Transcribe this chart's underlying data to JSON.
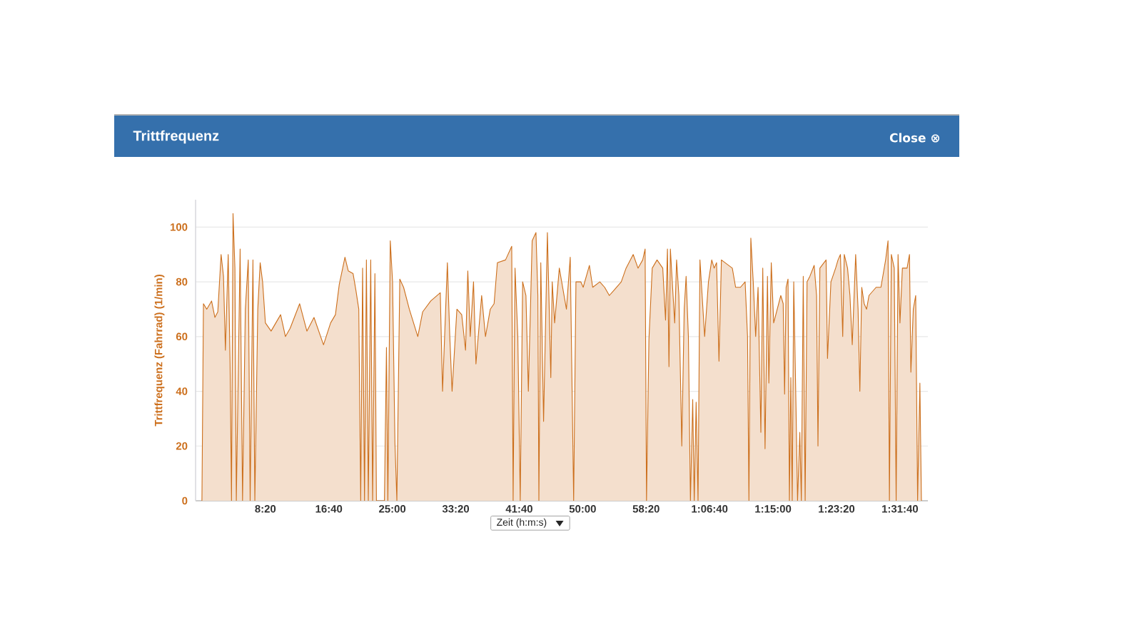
{
  "chart_data": {
    "type": "area",
    "title": "Trittfrequenz",
    "xlabel": "Zeit (h:m:s)",
    "ylabel": "Trittfrequenz (Fahrrad) (1/min)",
    "annotations": [
      "Close ⊗"
    ],
    "color": "#cc6f1c",
    "x": [
      0,
      12,
      38,
      76,
      102,
      125,
      151,
      170,
      185,
      207,
      222,
      233,
      245,
      260,
      271,
      301,
      320,
      342,
      365,
      380,
      402,
      417,
      440,
      459,
      478,
      500,
      545,
      620,
      658,
      695,
      770,
      827,
      883,
      958,
      1014,
      1052,
      1082,
      1127,
      1153,
      1191,
      1213,
      1236,
      1251,
      1266,
      1281,
      1296,
      1311,
      1330,
      1345,
      1363,
      1375,
      1438,
      1454,
      1465,
      1484,
      1502,
      1521,
      1536,
      1559,
      1589,
      1634,
      1701,
      1739,
      1803,
      1878,
      1896,
      1934,
      1953,
      1971,
      2009,
      2047,
      2077,
      2095,
      2114,
      2140,
      2159,
      2204,
      2234,
      2272,
      2302,
      2328,
      2392,
      2441,
      2452,
      2467,
      2489,
      2508,
      2527,
      2553,
      2572,
      2602,
      2632,
      2647,
      2655,
      2670,
      2692,
      2722,
      2734,
      2749,
      2760,
      2779,
      2816,
      2872,
      2902,
      2929,
      2947,
      2985,
      3004,
      3053,
      3079,
      3135,
      3173,
      3210,
      3248,
      3304,
      3342,
      3398,
      3436,
      3473,
      3492,
      3503,
      3522,
      3548,
      3586,
      3631,
      3653,
      3668,
      3680,
      3691,
      3706,
      3725,
      3740,
      3758,
      3781,
      3800,
      3815,
      3833,
      3849,
      3867,
      3879,
      3894,
      3909,
      3924,
      3961,
      3991,
      4017,
      4036,
      4055,
      4074,
      4093,
      4179,
      4205,
      4243,
      4280,
      4299,
      4310,
      4325,
      4344,
      4363,
      4382,
      4404,
      4419,
      4437,
      4456,
      4467,
      4486,
      4505,
      4561,
      4580,
      4591,
      4603,
      4618,
      4629,
      4640,
      4651,
      4663,
      4681,
      4693,
      4711,
      4723,
      4738,
      4753,
      4768,
      4790,
      4824,
      4843,
      4854,
      4869,
      4918,
      4929,
      4956,
      4993,
      5012,
      5031,
      5049,
      5061,
      5087,
      5106,
      5124,
      5151,
      5170,
      5184,
      5199,
      5218,
      5237,
      5256,
      5312,
      5350,
      5387,
      5406,
      5417,
      5432,
      5455,
      5470,
      5485,
      5500,
      5519,
      5556,
      5575,
      5586,
      5605,
      5624,
      5639,
      5657,
      5669
    ],
    "values": [
      0,
      72,
      70,
      73,
      67,
      69,
      90,
      82,
      55,
      90,
      50,
      0,
      105,
      85,
      0,
      92,
      0,
      70,
      88,
      0,
      88,
      0,
      70,
      87,
      80,
      65,
      62,
      68,
      60,
      63,
      72,
      62,
      67,
      57,
      65,
      68,
      79,
      89,
      84,
      83,
      77,
      70,
      0,
      85,
      0,
      88,
      0,
      88,
      0,
      83,
      0,
      0,
      56,
      0,
      95,
      80,
      21,
      0,
      81,
      78,
      70,
      60,
      69,
      73,
      76,
      40,
      87,
      60,
      40,
      70,
      68,
      55,
      84,
      60,
      80,
      50,
      75,
      60,
      70,
      72,
      87,
      88,
      93,
      0,
      85,
      60,
      0,
      80,
      75,
      40,
      95,
      98,
      75,
      0,
      87,
      29,
      98,
      75,
      45,
      80,
      65,
      85,
      70,
      89,
      0,
      80,
      80,
      78,
      86,
      78,
      80,
      78,
      75,
      77,
      80,
      85,
      90,
      85,
      88,
      92,
      0,
      59,
      85,
      88,
      85,
      66,
      92,
      49,
      92,
      80,
      65,
      88,
      75,
      20,
      70,
      82,
      60,
      0,
      37,
      0,
      36,
      0,
      88,
      60,
      80,
      88,
      85,
      87,
      51,
      88,
      85,
      78,
      78,
      80,
      60,
      0,
      96,
      80,
      60,
      78,
      25,
      85,
      19,
      82,
      43,
      87,
      65,
      75,
      72,
      39,
      78,
      81,
      0,
      45,
      0,
      80,
      34,
      0,
      25,
      0,
      82,
      0,
      80,
      82,
      86,
      75,
      20,
      85,
      88,
      52,
      80,
      85,
      88,
      90,
      60,
      90,
      85,
      75,
      57,
      90,
      70,
      40,
      78,
      72,
      70,
      75,
      78,
      78,
      88,
      95,
      0,
      90,
      85,
      0,
      90,
      65,
      85,
      85,
      90,
      47,
      70,
      75,
      0,
      43,
      0
    ],
    "xlim": [
      -50,
      5720
    ],
    "ylim": [
      0,
      110
    ],
    "xticks": [
      {
        "value": 500,
        "label": "8:20"
      },
      {
        "value": 1000,
        "label": "16:40"
      },
      {
        "value": 1500,
        "label": "25:00"
      },
      {
        "value": 2000,
        "label": "33:20"
      },
      {
        "value": 2500,
        "label": "41:40"
      },
      {
        "value": 3000,
        "label": "50:00"
      },
      {
        "value": 3500,
        "label": "58:20"
      },
      {
        "value": 4000,
        "label": "1:06:40"
      },
      {
        "value": 4500,
        "label": "1:15:00"
      },
      {
        "value": 5000,
        "label": "1:23:20"
      },
      {
        "value": 5500,
        "label": "1:31:40"
      }
    ],
    "yticks": [
      0,
      20,
      40,
      60,
      80,
      100
    ],
    "grid": "y"
  }
}
